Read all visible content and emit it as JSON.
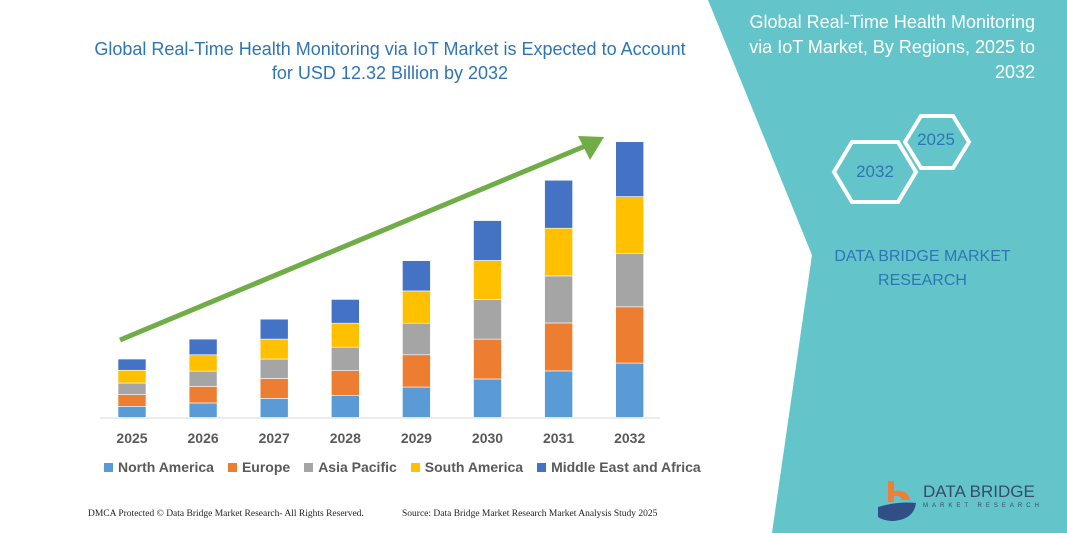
{
  "header": {
    "title": "Global Real-Time Health Monitoring via IoT Market is Expected to Account for USD 12.32 Billion by 2032"
  },
  "side_panel": {
    "title": "Global Real-Time Health Monitoring via IoT Market, By Regions, 2025 to 2032",
    "hex_start": "2025",
    "hex_end": "2032",
    "brand": "DATA BRIDGE MARKET RESEARCH",
    "logo_text": "DATA BRIDGE",
    "logo_sub": "MARKET RESEARCH",
    "color": "#63c5ca"
  },
  "footer": {
    "left": "DMCA Protected © Data Bridge Market Research- All Rights Reserved.",
    "right": "Source: Data Bridge Market Research  Market Analysis Study 2025"
  },
  "chart_data": {
    "type": "bar",
    "stacked": true,
    "grid": false,
    "legend_position": "bottom",
    "title": "Global Real-Time Health Monitoring via IoT Market is Expected to Account for USD 12.32 Billion by 2032",
    "categories": [
      "2025",
      "2026",
      "2027",
      "2028",
      "2029",
      "2030",
      "2031",
      "2032"
    ],
    "series": [
      {
        "name": "North America",
        "color": "#5b9bd5",
        "values": [
          0.5,
          0.65,
          0.85,
          0.99,
          1.36,
          1.72,
          2.08,
          2.43
        ]
      },
      {
        "name": "Europe",
        "color": "#ed7d31",
        "values": [
          0.52,
          0.74,
          0.89,
          1.1,
          1.44,
          1.78,
          2.14,
          2.51
        ]
      },
      {
        "name": "Asia Pacific",
        "color": "#a5a5a5",
        "values": [
          0.52,
          0.68,
          0.87,
          1.05,
          1.41,
          1.77,
          2.1,
          2.39
        ]
      },
      {
        "name": "South America",
        "color": "#ffc000",
        "values": [
          0.57,
          0.73,
          0.89,
          1.07,
          1.44,
          1.74,
          2.13,
          2.53
        ]
      },
      {
        "name": "Middle East and Africa",
        "color": "#4472c4",
        "values": [
          0.5,
          0.7,
          0.89,
          1.06,
          1.35,
          1.78,
          2.14,
          2.45
        ]
      }
    ],
    "trend_arrow_color": "#70ad47"
  }
}
